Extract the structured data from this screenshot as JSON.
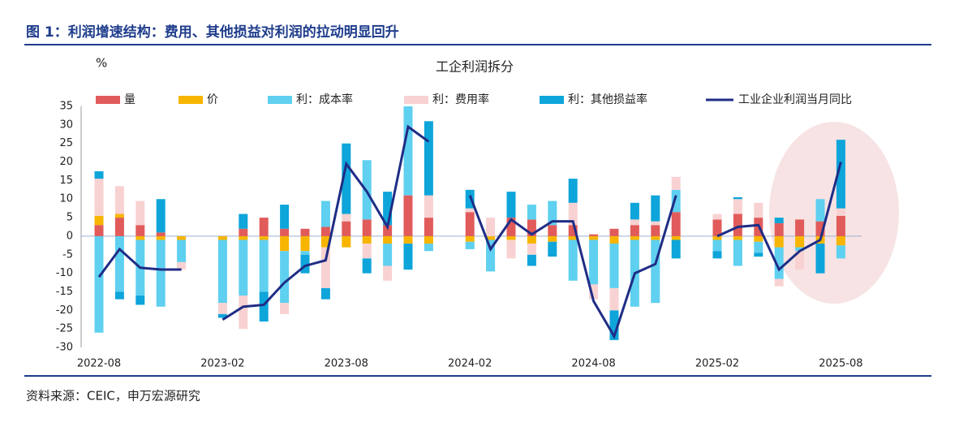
{
  "header": {
    "title": "图 1：利润增速结构：费用、其他损益对利润的拉动明显回升"
  },
  "source": "资料来源：CEIC，申万宏源研究",
  "chart_data": {
    "type": "bar",
    "title": "工企利润拆分",
    "y_label": "%",
    "categories": [
      "2022-08",
      null,
      null,
      null,
      null,
      null,
      "2023-02",
      null,
      null,
      null,
      null,
      null,
      "2023-08",
      null,
      null,
      null,
      null,
      null,
      "2024-02",
      null,
      null,
      null,
      null,
      null,
      "2024-08",
      null,
      null,
      null,
      null,
      null,
      "2025-02",
      null,
      null,
      null,
      null,
      null,
      "2025-08"
    ],
    "ylim": [
      -30,
      35
    ],
    "yticks": [
      -30,
      -25,
      -20,
      -15,
      -10,
      -5,
      0,
      5,
      10,
      15,
      20,
      25,
      30,
      35
    ],
    "series": [
      {
        "name": "量",
        "color": "#e15b5b",
        "values": [
          3,
          5,
          3,
          1,
          0,
          null,
          0,
          2,
          5,
          2,
          2,
          2.5,
          4,
          4.5,
          3,
          11,
          5,
          null,
          6.5,
          0,
          5,
          4.5,
          3,
          3,
          0.5,
          2,
          3,
          3,
          6.5,
          null,
          4.5,
          6,
          5,
          3.5,
          4.5,
          4,
          5.5
        ]
      },
      {
        "name": "价",
        "color": "#f7b500",
        "values": [
          2.5,
          1,
          -1,
          -1,
          -1,
          null,
          -1,
          -1,
          -1,
          -4,
          -4,
          -3,
          -3,
          -2,
          -2,
          -2,
          -2,
          null,
          -1.5,
          -1,
          -1,
          -2,
          -1.5,
          -1,
          -1,
          -2,
          -1,
          -1,
          -1,
          null,
          -1,
          -1,
          -1.5,
          -3,
          -3,
          -2,
          -2.5
        ]
      },
      {
        "name": "利：成本率",
        "color": "#5fd0f0",
        "values": [
          -26,
          -15,
          -15,
          -18,
          -6,
          null,
          -17,
          -15,
          -14,
          -14,
          -1,
          7,
          0,
          16,
          -6,
          24,
          -2,
          null,
          -2,
          -8.5,
          0,
          4,
          6.5,
          -11,
          -12,
          -12,
          -18,
          -17,
          6,
          null,
          -3,
          -7,
          -3,
          -8.5,
          -1,
          6,
          -3.5
        ]
      },
      {
        "name": "利：费用率",
        "color": "#f8d2d2",
        "values": [
          10,
          7.5,
          6.5,
          0,
          -2,
          null,
          -3,
          -9,
          0,
          -3,
          0,
          -11,
          2,
          -4,
          -4,
          0,
          6,
          null,
          1,
          5,
          -5,
          -3,
          0,
          6,
          -4,
          -6,
          1.5,
          1,
          3.5,
          null,
          1.5,
          4,
          4,
          -2,
          -5,
          0,
          2
        ]
      },
      {
        "name": "利：其他损益率",
        "color": "#0ea5da",
        "values": [
          2,
          -2,
          -2.5,
          9,
          0,
          null,
          -1,
          4,
          -8,
          6.5,
          -5,
          -3,
          19,
          -4,
          9,
          -7,
          20,
          null,
          5,
          0,
          7,
          -3,
          -4,
          6.5,
          0,
          -8,
          4.5,
          7,
          -5,
          null,
          -2,
          0.5,
          -1,
          1.5,
          0,
          -8,
          18.5
        ]
      },
      {
        "name": "工业企业利润当月同比",
        "color": "#1f2d86",
        "type": "line",
        "values": [
          -11,
          -3.5,
          -8.5,
          -9,
          -9,
          null,
          -22.5,
          -19,
          -18.5,
          -12.5,
          -8,
          -6.5,
          19.5,
          12,
          2.5,
          29.5,
          25.5,
          null,
          11,
          -3.5,
          4.5,
          0.5,
          4,
          4,
          -17.5,
          -27,
          -10,
          -7.5,
          11,
          null,
          0,
          2.5,
          3,
          -9,
          -4,
          -1,
          20
        ]
      }
    ]
  }
}
